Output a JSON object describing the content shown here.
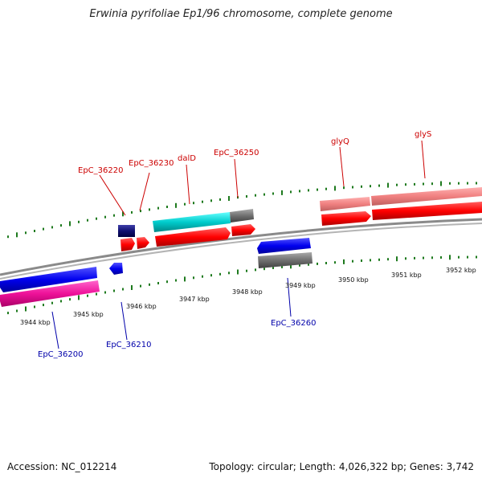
{
  "title": "Erwinia pyrifoliae Ep1/96 chromosome, complete genome",
  "footer": {
    "accession": "Accession: NC_012214",
    "summary": "Topology: circular; Length: 4,026,322 bp; Genes: 3,742"
  },
  "colors": {
    "backbone": "#8a8a8a",
    "tick": "#1e7a1e",
    "gene_top": "#ff0000",
    "gene_bottom": "#0000ee",
    "cds_top_pink": "#f08080",
    "cds_bottom_magenta": "#ee1199",
    "cyan": "#00cccc",
    "gray": "#707070",
    "navy": "#101070",
    "label_top": "#cc0000",
    "label_bottom": "#0000aa"
  },
  "scale": {
    "unit": "kbp",
    "ticks": [
      "3944 kbp",
      "3945 kbp",
      "3946 kbp",
      "3947 kbp",
      "3948 kbp",
      "3949 kbp",
      "3950 kbp",
      "3951 kbp",
      "3952 kbp"
    ]
  },
  "gene_labels": {
    "top": [
      "EpC_36220",
      "EpC_36230",
      "dalD",
      "EpC_36250",
      "glyQ",
      "glyS"
    ],
    "bottom": [
      "EpC_36200",
      "EpC_36210",
      "EpC_36260"
    ]
  }
}
